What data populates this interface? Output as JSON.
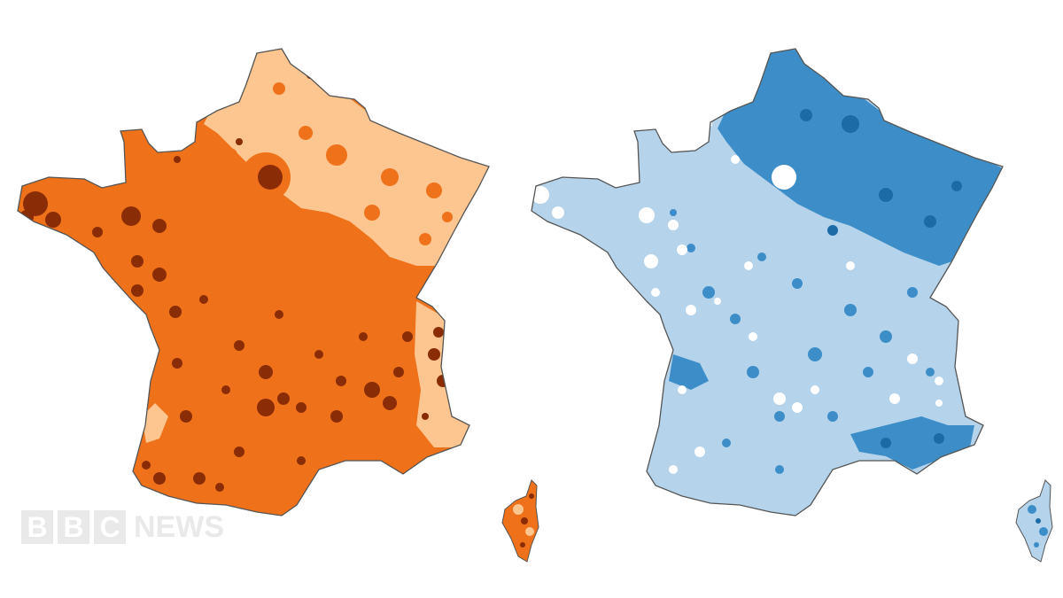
{
  "maps": [
    {
      "name": "orange-choropleth",
      "colors": {
        "light": "#fdc58f",
        "mid": "#ef7119",
        "dark": "#8a2c06"
      }
    },
    {
      "name": "blue-choropleth",
      "colors": {
        "light": "#b5d3ea",
        "mid": "#3d8ec8",
        "dark": "#1c6aa6",
        "white": "#ffffff"
      }
    }
  ],
  "logo": {
    "letters": [
      "B",
      "B",
      "C"
    ],
    "word": "NEWS",
    "color": "#e6e6e6"
  },
  "outline_color": "#555555"
}
